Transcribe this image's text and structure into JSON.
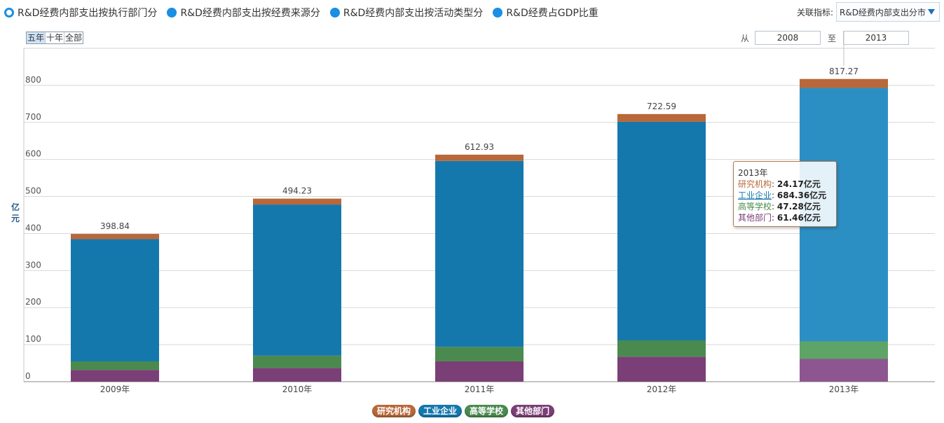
{
  "tabs": [
    {
      "label": "R&D经费内部支出按执行部门分",
      "selected": true
    },
    {
      "label": "R&D经费内部支出按经费来源分",
      "selected": false
    },
    {
      "label": "R&D经费内部支出按活动类型分",
      "selected": false
    },
    {
      "label": "R&D经费占GDP比重",
      "selected": false
    }
  ],
  "assoc": {
    "label": "关联指标:",
    "value": "R&D经费内部支出分市"
  },
  "range_buttons": [
    "五年",
    "十年",
    "全部"
  ],
  "date_range": {
    "from_label": "从",
    "from": "2008",
    "to_label": "至",
    "to": "2013"
  },
  "colors": {
    "research": "#b8683a",
    "industry": "#1578ad",
    "university": "#4a8a4e",
    "other": "#7a3f76",
    "industry_hover": "#2c8fc4",
    "university_hover": "#5ea467",
    "other_hover": "#8e5690",
    "accent": "#1a8fe3"
  },
  "tooltip": {
    "title": "2013年",
    "rows": [
      {
        "label": "研究机构",
        "value": "24.17亿元"
      },
      {
        "label": "工业企业",
        "value": "684.36亿元"
      },
      {
        "label": "高等学校",
        "value": "47.28亿元"
      },
      {
        "label": "其他部门",
        "value": "61.46亿元"
      }
    ]
  },
  "chart_data": {
    "type": "bar",
    "stacked": true,
    "categories": [
      "2009年",
      "2010年",
      "2011年",
      "2012年",
      "2013年"
    ],
    "ylabel": "亿元",
    "ylim": [
      0,
      900
    ],
    "yticks": [
      0,
      100,
      200,
      300,
      400,
      500,
      600,
      700,
      800
    ],
    "grid": true,
    "totals": [
      "398.84",
      "494.23",
      "612.93",
      "722.59",
      "817.27"
    ],
    "series": [
      {
        "name": "研究机构",
        "values": [
          14,
          16,
          17,
          21,
          24.17
        ]
      },
      {
        "name": "工业企业",
        "values": [
          330,
          408,
          502,
          590,
          684.36
        ]
      },
      {
        "name": "高等学校",
        "values": [
          23,
          33,
          39,
          44,
          47.28
        ]
      },
      {
        "name": "其他部门",
        "values": [
          31.84,
          37.23,
          54.93,
          67.59,
          61.46
        ]
      }
    ],
    "highlighted_category": "2013年",
    "legend_position": "bottom-center"
  }
}
